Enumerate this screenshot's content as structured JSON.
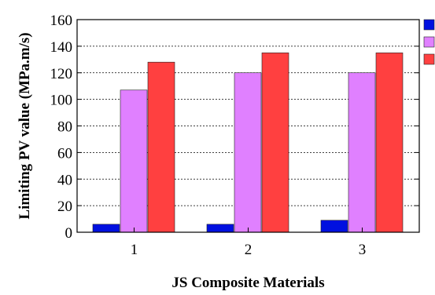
{
  "chart_data": {
    "type": "bar",
    "title": "",
    "xlabel": "JS Composite Materials",
    "ylabel": "Limiting PV value (MPa.m/s)",
    "categories": [
      "1",
      "2",
      "3"
    ],
    "ylim": [
      0,
      160
    ],
    "yticks": [
      0,
      20,
      40,
      60,
      80,
      100,
      120,
      140,
      160
    ],
    "grid": true,
    "legend": "right",
    "series": [
      {
        "color": "#0010e0",
        "values": [
          6,
          6,
          9
        ]
      },
      {
        "color": "#e080ff",
        "values": [
          107,
          120,
          120
        ]
      },
      {
        "color": "#ff4040",
        "values": [
          128,
          135,
          135
        ]
      }
    ]
  }
}
